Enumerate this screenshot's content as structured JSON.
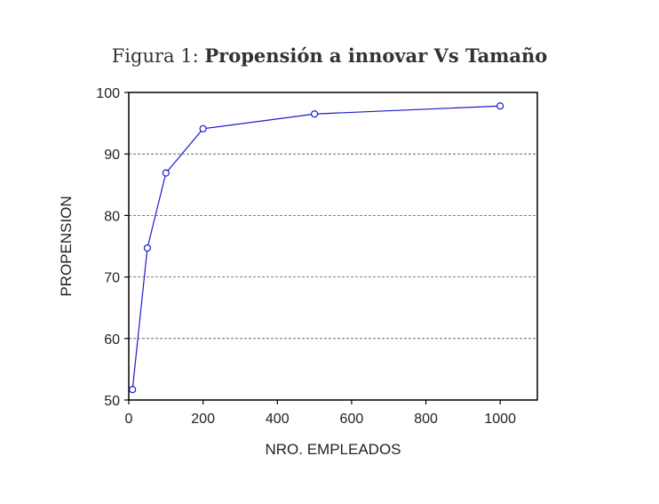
{
  "caption": {
    "prefix": "Figura 1:",
    "title": "Propensión a innovar Vs Tamaño"
  },
  "chart_data": {
    "type": "line",
    "title": "Figura 1: Propensión a innovar Vs Tamaño",
    "xlabel": "NRO. EMPLEADOS",
    "ylabel": "PROPENSION",
    "xlim": [
      0,
      1100
    ],
    "ylim": [
      50,
      100
    ],
    "x_ticks": [
      0,
      200,
      400,
      600,
      800,
      1000
    ],
    "y_ticks": [
      50,
      60,
      70,
      80,
      90,
      100
    ],
    "grid": "horizontal-dashed",
    "series": [
      {
        "x": [
          10,
          50,
          100,
          200,
          500,
          1000
        ],
        "y": [
          51.7,
          74.7,
          86.9,
          94.1,
          96.5,
          97.8
        ],
        "color": "#1a1acc",
        "marker": "open-circle"
      }
    ]
  }
}
